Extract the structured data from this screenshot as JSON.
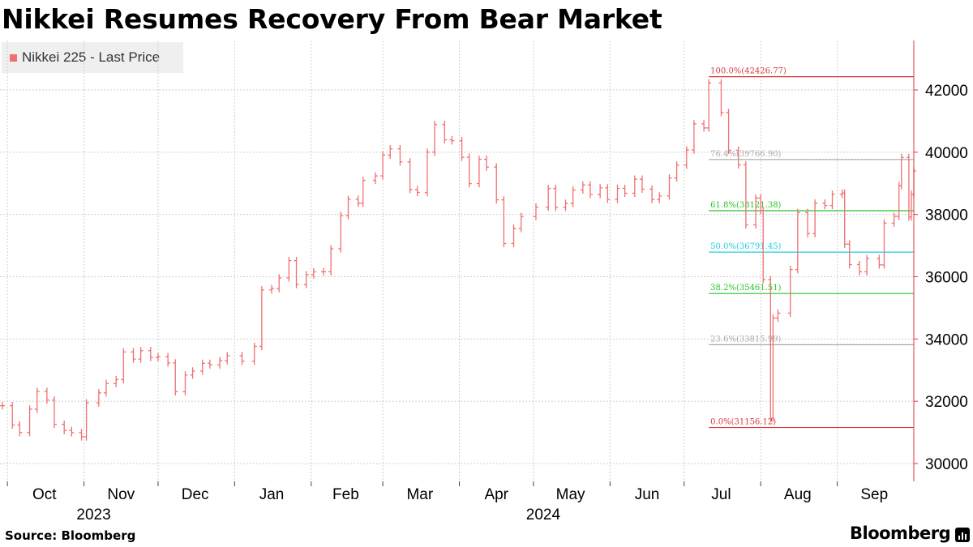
{
  "header": {
    "title": "Nikkei Resumes Recovery From Bear Market"
  },
  "legend": {
    "label": "Nikkei 225 - Last Price",
    "color": "#f07070"
  },
  "footer": {
    "source": "Source: Bloomberg",
    "brand": "Bloomberg"
  },
  "chart_data": {
    "type": "line",
    "style": "ohlc-bars",
    "title": "Nikkei Resumes Recovery From Bear Market",
    "ylim": [
      29500,
      43500
    ],
    "yticks": [
      30000,
      32000,
      34000,
      36000,
      38000,
      40000,
      42000
    ],
    "ytick_labels": [
      "30000",
      "32000",
      "34000",
      "36000",
      "38000",
      "40000",
      "42000"
    ],
    "y_axis_side": "right",
    "grid": true,
    "legend_position": "top-left",
    "x_range": [
      "2023-09-28",
      "2024-10-02"
    ],
    "month_labels": [
      {
        "label": "Oct",
        "date": "2023-10-01"
      },
      {
        "label": "Nov",
        "date": "2023-11-01"
      },
      {
        "label": "Dec",
        "date": "2023-12-01"
      },
      {
        "label": "Jan",
        "date": "2024-01-01"
      },
      {
        "label": "Feb",
        "date": "2024-02-01"
      },
      {
        "label": "Mar",
        "date": "2024-03-01"
      },
      {
        "label": "Apr",
        "date": "2024-04-01"
      },
      {
        "label": "May",
        "date": "2024-05-01"
      },
      {
        "label": "Jun",
        "date": "2024-06-01"
      },
      {
        "label": "Jul",
        "date": "2024-07-01"
      },
      {
        "label": "Aug",
        "date": "2024-08-01"
      },
      {
        "label": "Sep",
        "date": "2024-09-01"
      }
    ],
    "year_labels": [
      {
        "label": "2023",
        "date": "2023-11-01"
      },
      {
        "label": "2024",
        "date": "2024-05-01"
      }
    ],
    "series": [
      {
        "name": "Nikkei 225 - Last Price",
        "color": "#f07070",
        "points": [
          [
            "2023-09-29",
            31858
          ],
          [
            "2023-10-03",
            31237
          ],
          [
            "2023-10-06",
            30995
          ],
          [
            "2023-10-10",
            31746
          ],
          [
            "2023-10-13",
            32316
          ],
          [
            "2023-10-17",
            32040
          ],
          [
            "2023-10-20",
            31260
          ],
          [
            "2023-10-24",
            31062
          ],
          [
            "2023-10-27",
            30992
          ],
          [
            "2023-10-31",
            30859
          ],
          [
            "2023-11-02",
            31950
          ],
          [
            "2023-11-07",
            32272
          ],
          [
            "2023-11-10",
            32568
          ],
          [
            "2023-11-14",
            32695
          ],
          [
            "2023-11-17",
            33585
          ],
          [
            "2023-11-21",
            33354
          ],
          [
            "2023-11-24",
            33625
          ],
          [
            "2023-11-28",
            33408
          ],
          [
            "2023-12-01",
            33431
          ],
          [
            "2023-12-05",
            33231
          ],
          [
            "2023-12-08",
            32307
          ],
          [
            "2023-12-12",
            32843
          ],
          [
            "2023-12-15",
            32970
          ],
          [
            "2023-12-19",
            33219
          ],
          [
            "2023-12-22",
            33169
          ],
          [
            "2023-12-26",
            33305
          ],
          [
            "2023-12-29",
            33464
          ],
          [
            "2024-01-04",
            33288
          ],
          [
            "2024-01-09",
            33763
          ],
          [
            "2024-01-12",
            35577
          ],
          [
            "2024-01-16",
            35620
          ],
          [
            "2024-01-19",
            35963
          ],
          [
            "2024-01-23",
            36517
          ],
          [
            "2024-01-26",
            35751
          ],
          [
            "2024-01-30",
            36066
          ],
          [
            "2024-02-02",
            36158
          ],
          [
            "2024-02-06",
            36160
          ],
          [
            "2024-02-09",
            36897
          ],
          [
            "2024-02-13",
            37963
          ],
          [
            "2024-02-16",
            38487
          ],
          [
            "2024-02-20",
            38364
          ],
          [
            "2024-02-22",
            39098
          ],
          [
            "2024-02-27",
            39239
          ],
          [
            "2024-03-01",
            39910
          ],
          [
            "2024-03-04",
            40109
          ],
          [
            "2024-03-08",
            39688
          ],
          [
            "2024-03-12",
            38797
          ],
          [
            "2024-03-15",
            38707
          ],
          [
            "2024-03-19",
            40003
          ],
          [
            "2024-03-22",
            40888
          ],
          [
            "2024-03-26",
            40398
          ],
          [
            "2024-03-29",
            40369
          ],
          [
            "2024-04-02",
            39838
          ],
          [
            "2024-04-05",
            38992
          ],
          [
            "2024-04-09",
            39773
          ],
          [
            "2024-04-12",
            39523
          ],
          [
            "2024-04-16",
            38471
          ],
          [
            "2024-04-19",
            37068
          ],
          [
            "2024-04-23",
            37552
          ],
          [
            "2024-04-26",
            37934
          ],
          [
            "2024-05-02",
            38236
          ],
          [
            "2024-05-07",
            38835
          ],
          [
            "2024-05-10",
            38229
          ],
          [
            "2024-05-14",
            38356
          ],
          [
            "2024-05-17",
            38787
          ],
          [
            "2024-05-21",
            38946
          ],
          [
            "2024-05-24",
            38646
          ],
          [
            "2024-05-28",
            38855
          ],
          [
            "2024-05-31",
            38487
          ],
          [
            "2024-06-04",
            38837
          ],
          [
            "2024-06-07",
            38683
          ],
          [
            "2024-06-11",
            39134
          ],
          [
            "2024-06-14",
            38814
          ],
          [
            "2024-06-18",
            38482
          ],
          [
            "2024-06-21",
            38596
          ],
          [
            "2024-06-25",
            39173
          ],
          [
            "2024-06-28",
            39583
          ],
          [
            "2024-07-02",
            40074
          ],
          [
            "2024-07-05",
            40912
          ],
          [
            "2024-07-09",
            40780
          ],
          [
            "2024-07-11",
            42224
          ],
          [
            "2024-07-16",
            41275
          ],
          [
            "2024-07-19",
            40063
          ],
          [
            "2024-07-23",
            39594
          ],
          [
            "2024-07-26",
            37667
          ],
          [
            "2024-07-30",
            38526
          ],
          [
            "2024-08-01",
            38126
          ],
          [
            "2024-08-02",
            35909
          ],
          [
            "2024-08-05",
            31458
          ],
          [
            "2024-08-06",
            34675
          ],
          [
            "2024-08-08",
            34831
          ],
          [
            "2024-08-13",
            36232
          ],
          [
            "2024-08-16",
            38062
          ],
          [
            "2024-08-20",
            37389
          ],
          [
            "2024-08-23",
            38364
          ],
          [
            "2024-08-27",
            38288
          ],
          [
            "2024-08-30",
            38647
          ],
          [
            "2024-09-03",
            38686
          ],
          [
            "2024-09-04",
            37047
          ],
          [
            "2024-09-06",
            36391
          ],
          [
            "2024-09-10",
            36159
          ],
          [
            "2024-09-13",
            36581
          ],
          [
            "2024-09-18",
            36380
          ],
          [
            "2024-09-20",
            37723
          ],
          [
            "2024-09-24",
            37940
          ],
          [
            "2024-09-26",
            38926
          ],
          [
            "2024-09-27",
            39829
          ],
          [
            "2024-09-30",
            37919
          ],
          [
            "2024-10-01",
            38651
          ],
          [
            "2024-10-02",
            39400
          ]
        ]
      }
    ],
    "fibonacci": {
      "start_date": "2024-07-11",
      "levels": [
        {
          "label": "100.0%(42426.77)",
          "value": 42426.77,
          "color": "#d93838"
        },
        {
          "label": "76.4%(39766.90)",
          "value": 39766.9,
          "color": "#a8a8a8"
        },
        {
          "label": "61.8%(38121.38)",
          "value": 38121.38,
          "color": "#28c428"
        },
        {
          "label": "50.0%(36791.45)",
          "value": 36791.45,
          "color": "#22cfe0"
        },
        {
          "label": "38.2%(35461.51)",
          "value": 35461.51,
          "color": "#28c428"
        },
        {
          "label": "23.6%(33815.99)",
          "value": 33815.99,
          "color": "#a8a8a8"
        },
        {
          "label": "0.0%(31156.12)",
          "value": 31156.12,
          "color": "#d93838"
        }
      ]
    }
  }
}
